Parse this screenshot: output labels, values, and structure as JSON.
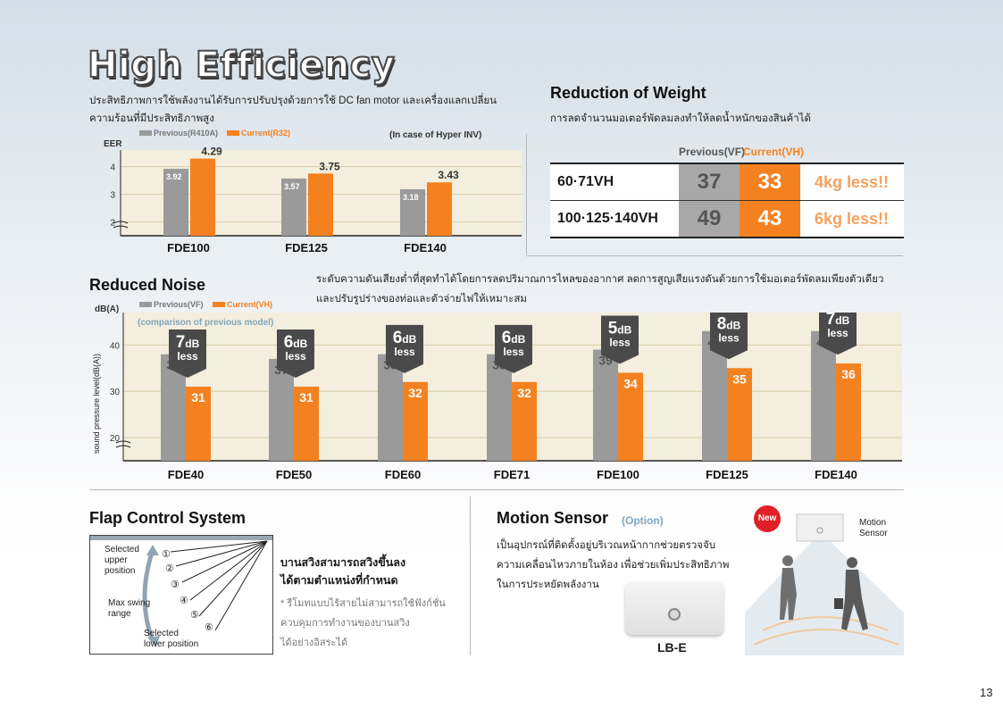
{
  "page": {
    "title": "High Efficiency",
    "page_number": "13"
  },
  "eff": {
    "desc_line1": "ประสิทธิภาพการใช้พลังงานได้รับการปรับปรุงด้วยการใช้ DC fan motor และเครื่องแลกเปลี่ยน",
    "desc_line2": "ความร้อนที่มีประสิทธิภาพสูง",
    "legend_prev": "Previous(R410A)",
    "legend_curr": "Current(R32)",
    "note": "(In case of Hyper INV)",
    "ylabel": "EER"
  },
  "weight": {
    "title": "Reduction of Weight",
    "desc": "การลดจำนวนมอเตอร์พัดลมลงทำให้ลดน้ำหนักของสินค้าได้",
    "header_prev": "Previous(VF)",
    "header_curr": "Current(VH)",
    "rows": [
      {
        "model": "60·71VH",
        "prev": "37",
        "curr": "33",
        "less": "4kg less!!"
      },
      {
        "model": "100·125·140VH",
        "prev": "49",
        "curr": "43",
        "less": "6kg less!!"
      }
    ]
  },
  "noise": {
    "title": "Reduced Noise",
    "desc_line1": "ระดับความดันเสียงต่ำที่สุดทำได้โดยการลดปริมาณการไหลของอากาศ ลดการสูญเสียแรงดันด้วยการใช้มอเตอร์พัดลมเพียงตัวเดียว",
    "desc_line2": "และปรับรูปร่างของท่อและตัวจ่ายไฟให้เหมาะสม",
    "legend_prev": "Previous(VF)",
    "legend_curr": "Current(VH)",
    "comparison": "(comparison of previous model)",
    "yunit": "dB(A)",
    "ylabel": "sound pressure level(dB(A))",
    "less_word": "less",
    "db_unit": "dB"
  },
  "flap": {
    "title": "Flap Control System",
    "upper_label_1": "Selected",
    "upper_label_2": "upper",
    "upper_label_3": "position",
    "swing_1": "Max swing",
    "swing_2": "range",
    "lower_1": "Selected",
    "lower_2": "lower position",
    "positions": [
      "①",
      "②",
      "③",
      "④",
      "⑤",
      "⑥"
    ],
    "heading_1": "บานสวิงสามารถสวิงขึ้นลง",
    "heading_2": "ได้ตามตำแหน่งที่กำหนด",
    "note_1": "* รีโมทแบบไร้สายไม่สามารถใช้ฟังก์ชั่น",
    "note_2": "ควบคุมการทำงานของบานสวิง",
    "note_3": "ได้อย่างอิสระได้"
  },
  "motion": {
    "title": "Motion Sensor",
    "option": "(Option)",
    "desc_1": "เป็นอุปกรณ์ที่ติดตั้งอยู่บริเวณหน้ากากช่วยตรวจจับ",
    "desc_2": "ความเคลื่อนไหวภายในห้อง เพื่อช่วยเพิ่มประสิทธิภาพ",
    "desc_3": "ในการประหยัดพลังงาน",
    "new_badge": "New",
    "sensor_label_1": "Motion",
    "sensor_label_2": "Sensor",
    "product_label": "LB-E"
  },
  "colors": {
    "prev": "#9a9a9a",
    "curr": "#f4811f",
    "badge": "#4a4a4a",
    "chart_bg": "#f3eedd",
    "new": "#e01f26"
  },
  "chart_data": [
    {
      "type": "bar",
      "title": "",
      "ylabel": "EER",
      "categories": [
        "FDE100",
        "FDE125",
        "FDE140"
      ],
      "series": [
        {
          "name": "Previous(R410A)",
          "values": [
            3.92,
            3.57,
            3.18
          ]
        },
        {
          "name": "Current(R32)",
          "values": [
            4.29,
            3.75,
            3.43
          ]
        }
      ],
      "yticks": [
        "2",
        "3",
        "4"
      ],
      "ylim": [
        1.5,
        4.6
      ]
    },
    {
      "type": "bar",
      "title": "",
      "ylabel": "sound pressure level(dB(A))",
      "categories": [
        "FDE40",
        "FDE50",
        "FDE60",
        "FDE71",
        "FDE100",
        "FDE125",
        "FDE140"
      ],
      "series": [
        {
          "name": "Previous(VF)",
          "values": [
            38,
            37,
            38,
            38,
            39,
            43,
            43
          ]
        },
        {
          "name": "Current(VH)",
          "values": [
            31,
            31,
            32,
            32,
            34,
            35,
            36
          ]
        }
      ],
      "reductions": [
        "7",
        "6",
        "6",
        "6",
        "5",
        "8",
        "7"
      ],
      "yticks": [
        "20",
        "30",
        "40"
      ],
      "ylim": [
        15,
        47
      ]
    }
  ]
}
